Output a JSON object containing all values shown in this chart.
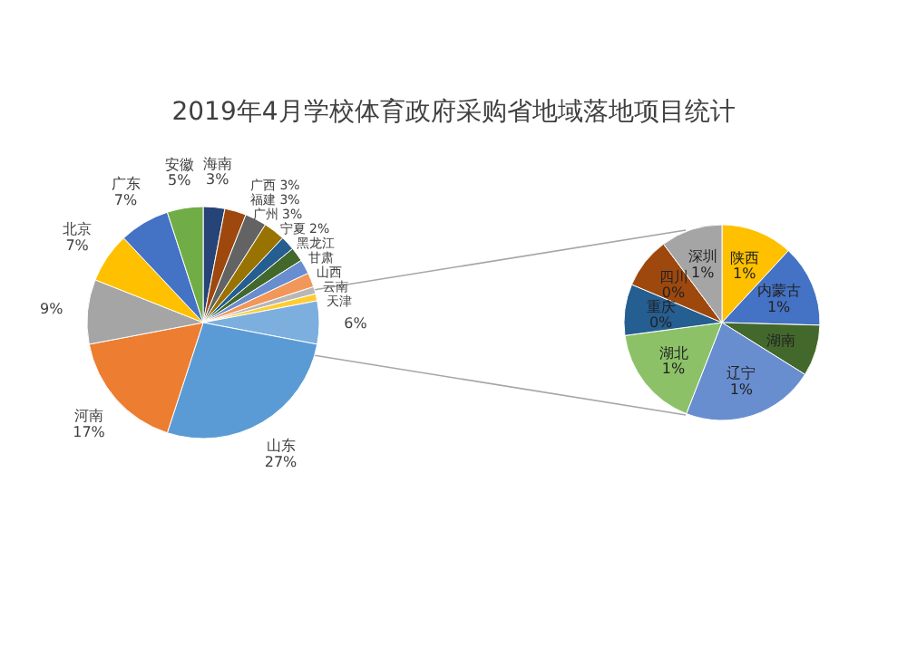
{
  "chart_data": [
    {
      "type": "pie",
      "title": "2019年4月学校体育政府采购省地域落地项目统计",
      "categories": [
        "海南",
        "广西",
        "福建",
        "广州",
        "宁夏",
        "黑龙江",
        "甘肃",
        "山西",
        "云南",
        "天津",
        null,
        "山东",
        "河南",
        null,
        "北京",
        "广东",
        "安徽"
      ],
      "values": [
        3,
        3,
        3,
        3,
        2,
        2,
        2,
        2,
        1,
        1,
        6,
        27,
        17,
        9,
        7,
        7,
        5
      ],
      "value_labels": [
        "3%",
        "3%",
        "3%",
        "3%",
        "2%",
        null,
        null,
        null,
        null,
        null,
        "6%",
        "27%",
        "17%",
        "9%",
        "7%",
        "7%",
        "5%"
      ],
      "colors": [
        "#264478",
        "#9e480e",
        "#636363",
        "#997300",
        "#255e91",
        "#43682b",
        "#698ed0",
        "#f1975a",
        "#b7b7b7",
        "#ffcd33",
        "#7cafdd",
        "#5b9bd5",
        "#ed7d31",
        "#a5a5a5",
        "#ffc000",
        "#4472c4",
        "#70ad47"
      ]
    },
    {
      "type": "pie",
      "categories": [
        "陕西",
        "内蒙古",
        "湖南",
        "辽宁",
        "湖北",
        "重庆",
        "四川",
        "深圳"
      ],
      "values": [
        0.7,
        0.8,
        0.5,
        1.3,
        1.0,
        0.5,
        0.5,
        0.6
      ],
      "value_labels": [
        "1%",
        "1%",
        null,
        "1%",
        "1%",
        "0%",
        "0%",
        "1%"
      ],
      "colors": [
        "#ffc000",
        "#4472c4",
        "#43682b",
        "#698ed0",
        "#8cc168",
        "#255e91",
        "#9e480e",
        "#a5a5a5"
      ]
    }
  ]
}
